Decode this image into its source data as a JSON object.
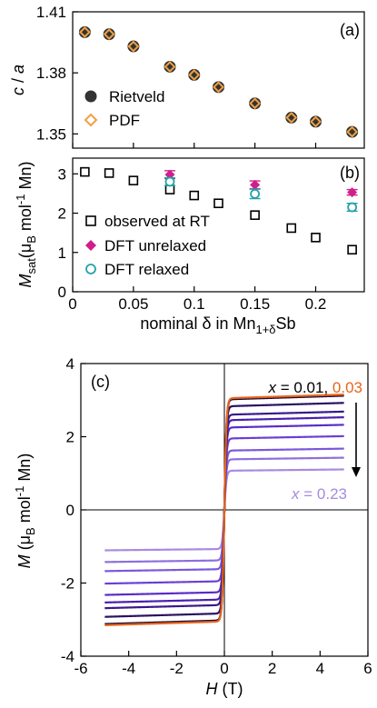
{
  "chart_data": [
    {
      "type": "scatter",
      "panel_label": "(a)",
      "ylabel_italic": "c",
      "ylabel_rest": " / ",
      "ylabel_italic2": "a",
      "xlim": [
        0,
        0.24
      ],
      "ylim": [
        1.343,
        1.41
      ],
      "y_ticks": [
        1.35,
        1.38,
        1.41
      ],
      "y_ticklabels": [
        "1.35",
        "1.38",
        "1.41"
      ],
      "legend_position": "bottom-left",
      "series": [
        {
          "name": "Rietveld",
          "marker": "filled-circle",
          "color": "#333333",
          "x": [
            0.01,
            0.03,
            0.05,
            0.08,
            0.1,
            0.12,
            0.15,
            0.18,
            0.2,
            0.23
          ],
          "y": [
            1.4,
            1.399,
            1.393,
            1.383,
            1.379,
            1.373,
            1.365,
            1.358,
            1.356,
            1.351
          ]
        },
        {
          "name": "PDF",
          "marker": "open-diamond",
          "color": "#f0a040",
          "x": [
            0.01,
            0.03,
            0.05,
            0.08,
            0.1,
            0.12,
            0.15,
            0.18,
            0.2,
            0.23
          ],
          "y": [
            1.4,
            1.399,
            1.393,
            1.383,
            1.379,
            1.373,
            1.365,
            1.358,
            1.356,
            1.351
          ]
        }
      ]
    },
    {
      "type": "scatter",
      "panel_label": "(b)",
      "ylabel_italic": "M",
      "ylabel_sub": "sat",
      "ylabel_rest": "(μ",
      "ylabel_sub2": "B",
      "ylabel_rest2": " mol",
      "ylabel_sup": "-1",
      "ylabel_rest3": " Mn)",
      "xlabel_main": "nominal δ in Mn",
      "xlabel_sub": "1+δ",
      "xlabel_end": "Sb",
      "xlim": [
        0,
        0.24
      ],
      "ylim": [
        0,
        3.4
      ],
      "x_ticks": [
        0,
        0.05,
        0.1,
        0.15,
        0.2
      ],
      "x_ticklabels": [
        "0",
        "0.05",
        "0.1",
        "0.15",
        "0.2"
      ],
      "y_ticks": [
        0,
        1,
        2,
        3
      ],
      "y_ticklabels": [
        "0",
        "1",
        "2",
        "3"
      ],
      "legend_position": "bottom-left",
      "series": [
        {
          "name": "observed at RT",
          "marker": "open-square",
          "color": "#000000",
          "x": [
            0.01,
            0.03,
            0.05,
            0.08,
            0.1,
            0.12,
            0.15,
            0.18,
            0.2,
            0.23
          ],
          "y": [
            3.05,
            3.02,
            2.83,
            2.6,
            2.45,
            2.25,
            1.95,
            1.62,
            1.38,
            1.07
          ]
        },
        {
          "name": "DFT unrelaxed",
          "marker": "filled-diamond",
          "color": "#d01f8c",
          "x": [
            0.08,
            0.15,
            0.23
          ],
          "y": [
            2.98,
            2.72,
            2.53
          ],
          "err": [
            0.1,
            0.1,
            0.07
          ]
        },
        {
          "name": "DFT relaxed",
          "marker": "open-circle",
          "color": "#22a3a8",
          "x": [
            0.08,
            0.15,
            0.23
          ],
          "y": [
            2.8,
            2.49,
            2.15
          ],
          "err": [
            0.1,
            0.12,
            0.1
          ]
        }
      ]
    },
    {
      "type": "line",
      "panel_label": "(c)",
      "ylabel_italic": "M",
      "ylabel_rest": " (μ",
      "ylabel_sub": "B",
      "ylabel_rest2": " mol",
      "ylabel_sup": "-1",
      "ylabel_rest3": " Mn)",
      "xlabel_italic": "H",
      "xlabel_rest": " (T)",
      "xlim": [
        -6,
        6
      ],
      "ylim": [
        -4,
        4
      ],
      "x_ticks": [
        -6,
        -4,
        -2,
        0,
        2,
        4,
        6
      ],
      "x_ticklabels": [
        "-6",
        "-4",
        "-2",
        "0",
        "2",
        "4",
        "6"
      ],
      "y_ticks": [
        -4,
        -2,
        0,
        2,
        4
      ],
      "y_ticklabels": [
        "-4",
        "-2",
        "0",
        "2",
        "4"
      ],
      "field_range": [
        -5,
        5
      ],
      "annotation_top": {
        "var": "x",
        "eq": " = 0.01, ",
        "second": "0.03",
        "second_color": "#e8641b"
      },
      "annotation_bottom": {
        "var": "x",
        "eq": " = 0.23",
        "color": "#a78be0"
      },
      "arrow": "downward",
      "series": [
        {
          "Ms": 3.05,
          "color": "#e8641b"
        },
        {
          "Ms": 3.02,
          "color": "#1a0a36"
        },
        {
          "Ms": 2.83,
          "color": "#2a1160"
        },
        {
          "Ms": 2.6,
          "color": "#3a188a"
        },
        {
          "Ms": 2.45,
          "color": "#4a20b0"
        },
        {
          "Ms": 2.25,
          "color": "#5a2cc8"
        },
        {
          "Ms": 1.95,
          "color": "#6a40d4"
        },
        {
          "Ms": 1.62,
          "color": "#7a58da"
        },
        {
          "Ms": 1.38,
          "color": "#8c70de"
        },
        {
          "Ms": 1.07,
          "color": "#a78be0"
        }
      ]
    }
  ]
}
